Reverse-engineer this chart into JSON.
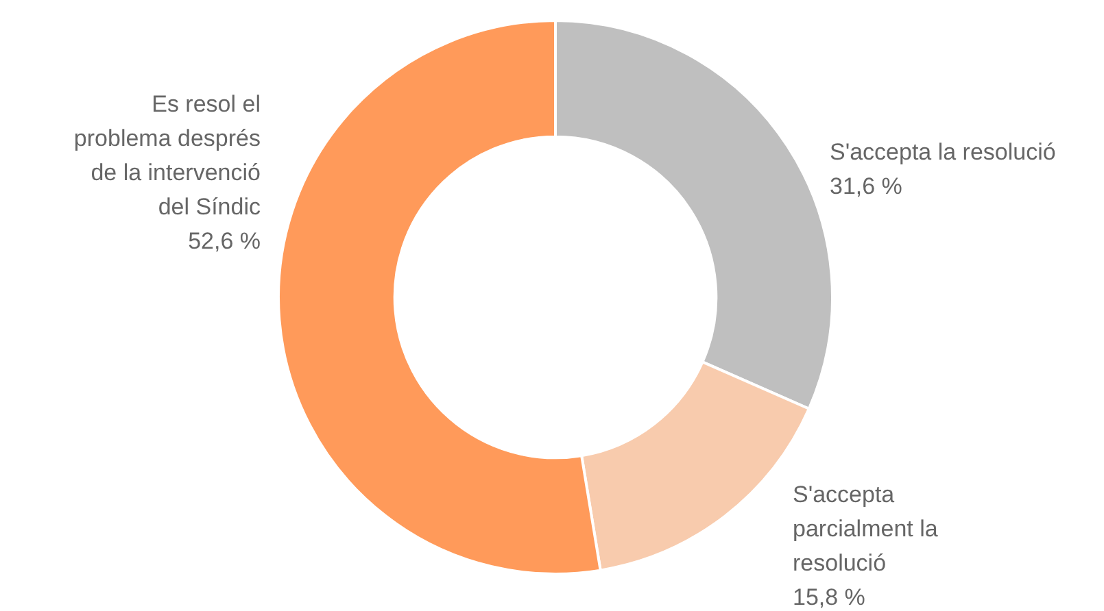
{
  "chart_data": {
    "type": "donut",
    "categories": [
      "S'accepta la resolució",
      "S'accepta parcialment la resolució",
      "Es resol el problema després de la intervenció del Síndic"
    ],
    "values": [
      31.6,
      15.8,
      52.6
    ],
    "colors": [
      "#bfbfbf",
      "#f8cbad",
      "#ff9a5a"
    ],
    "value_labels": [
      "31,6 %",
      "15,8 %",
      "52,6 %"
    ],
    "legend": false
  }
}
